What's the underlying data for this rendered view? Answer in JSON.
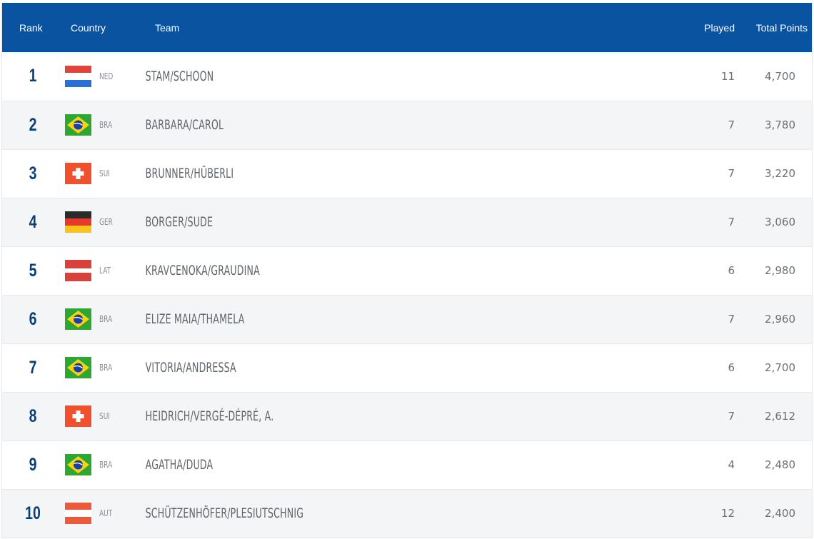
{
  "header": {
    "rank": "Rank",
    "country": "Country",
    "team": "Team",
    "played": "Played",
    "points": "Total Points"
  },
  "colors": {
    "header_bg": "#0a53a0",
    "rank_text": "#0b3f78"
  },
  "rows": [
    {
      "rank": "1",
      "flag": "netherlands-flag-icon",
      "code": "NED",
      "team": "STAM/SCHOON",
      "played": "11",
      "points": "4,700"
    },
    {
      "rank": "2",
      "flag": "brazil-flag-icon",
      "code": "BRA",
      "team": "BARBARA/CAROL",
      "played": "7",
      "points": "3,780"
    },
    {
      "rank": "3",
      "flag": "switzerland-flag-icon",
      "code": "SUI",
      "team": "BRUNNER/HÜBERLI",
      "played": "7",
      "points": "3,220"
    },
    {
      "rank": "4",
      "flag": "germany-flag-icon",
      "code": "GER",
      "team": "BORGER/SUDE",
      "played": "7",
      "points": "3,060"
    },
    {
      "rank": "5",
      "flag": "latvia-flag-icon",
      "code": "LAT",
      "team": "KRAVCENOKA/GRAUDINA",
      "played": "6",
      "points": "2,980"
    },
    {
      "rank": "6",
      "flag": "brazil-flag-icon",
      "code": "BRA",
      "team": "ELIZE MAIA/THAMELA",
      "played": "7",
      "points": "2,960"
    },
    {
      "rank": "7",
      "flag": "brazil-flag-icon",
      "code": "BRA",
      "team": "VITORIA/ANDRESSA",
      "played": "6",
      "points": "2,700"
    },
    {
      "rank": "8",
      "flag": "switzerland-flag-icon",
      "code": "SUI",
      "team": "HEIDRICH/VERGÉ-DÉPRÉ, A.",
      "played": "7",
      "points": "2,612"
    },
    {
      "rank": "9",
      "flag": "brazil-flag-icon",
      "code": "BRA",
      "team": "AGATHA/DUDA",
      "played": "4",
      "points": "2,480"
    },
    {
      "rank": "10",
      "flag": "austria-flag-icon",
      "code": "AUT",
      "team": "SCHÜTZENHÖFER/PLESIUTSCHNIG",
      "played": "12",
      "points": "2,400"
    }
  ]
}
